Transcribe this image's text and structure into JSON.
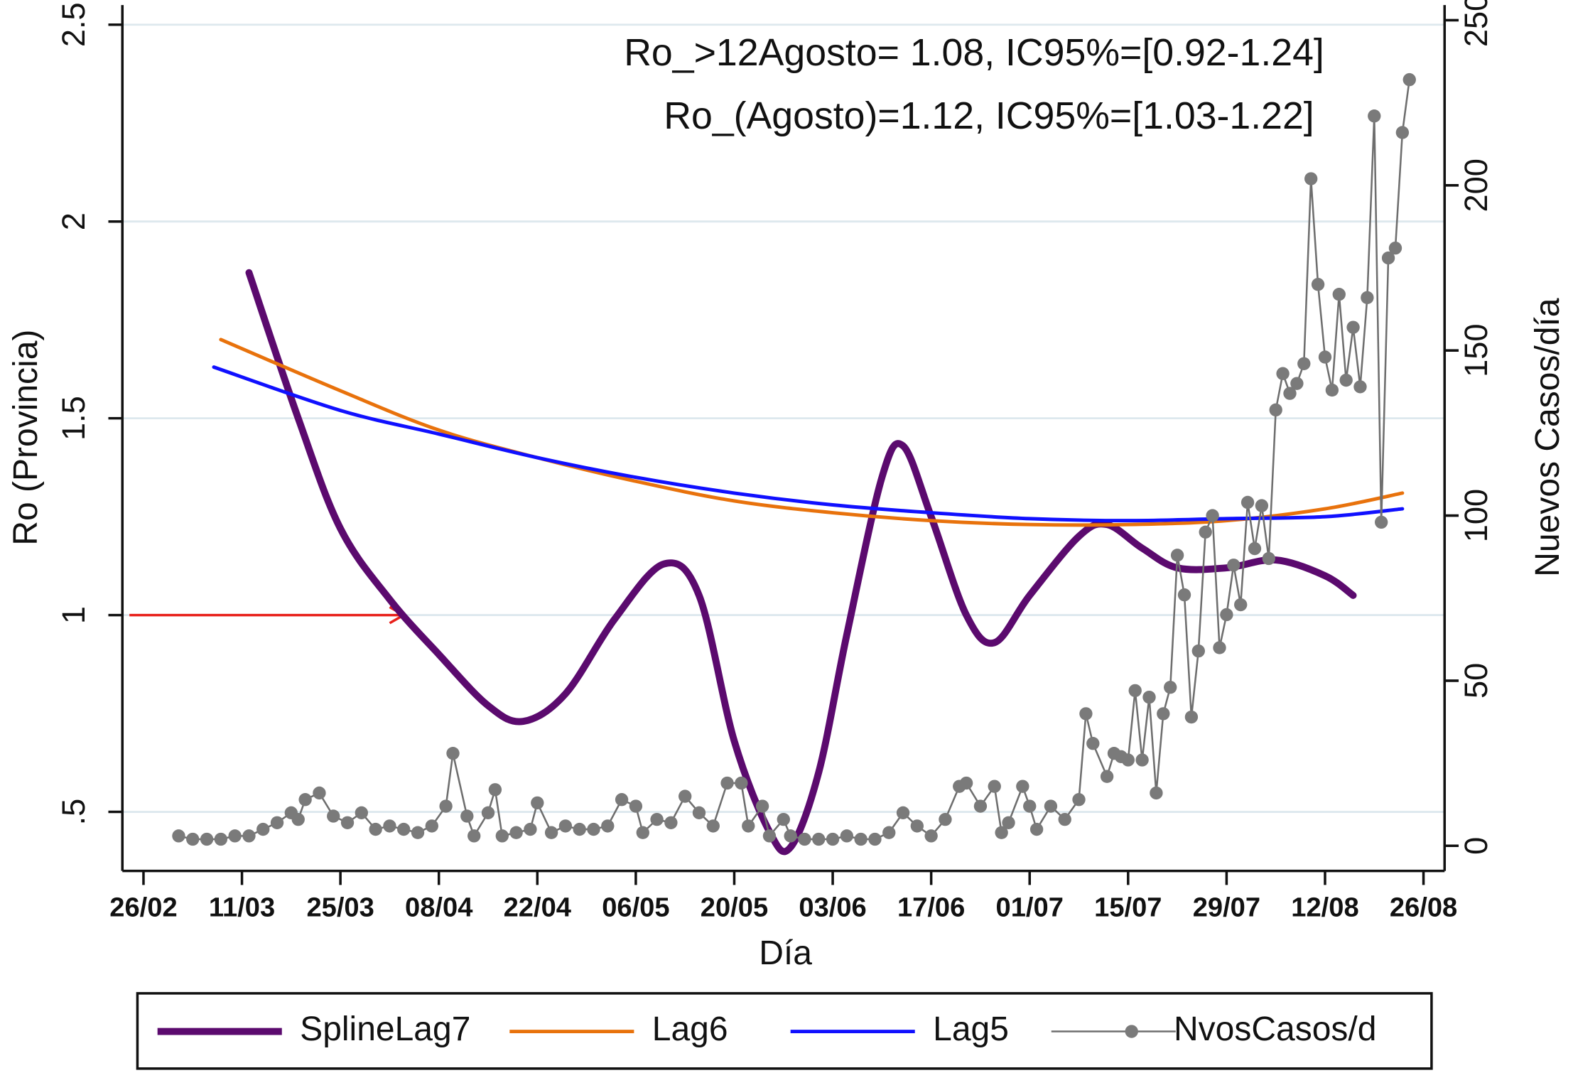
{
  "chart_data": {
    "type": "line",
    "annotations": [
      "Ro_>12Agosto= 1.08, IC95%=[0.92-1.24]",
      "Ro_(Agosto)=1.12, IC95%=[1.03-1.22]"
    ],
    "xlabel": "Día",
    "ylabel": "Ro (Provincia)",
    "y2label": "Nuevos Casos/día",
    "xlim": [
      "23/02",
      "29/08"
    ],
    "xticks": [
      "26/02",
      "11/03",
      "25/03",
      "08/04",
      "22/04",
      "06/05",
      "20/05",
      "03/06",
      "17/06",
      "01/07",
      "15/07",
      "29/07",
      "12/08",
      "26/08"
    ],
    "ylim": [
      0.35,
      2.55
    ],
    "yticks": [
      {
        "value": 0.5,
        "label": ".5"
      },
      1,
      1.5,
      2,
      2.5
    ],
    "y2lim": [
      -7.6,
      254.6
    ],
    "y2ticks": [
      0,
      50,
      100,
      150,
      200,
      250
    ],
    "grid": true,
    "legend": "bottom",
    "arrow": {
      "y": 1,
      "x": [
        "24/02",
        "03/04"
      ],
      "color": "#e8201a"
    },
    "series": [
      {
        "name": "SplineLag7",
        "color": "#5b0a6e",
        "width": 7,
        "smooth": true,
        "x": [
          "12/03",
          "19/03",
          "25/03",
          "01/04",
          "08/04",
          "15/04",
          "20/04",
          "26/04",
          "03/05",
          "10/05",
          "15/05",
          "20/05",
          "25/05",
          "28/05",
          "01/06",
          "05/06",
          "10/06",
          "13/06",
          "17/06",
          "22/06",
          "26/06",
          "01/07",
          "08/07",
          "12/07",
          "17/07",
          "22/07",
          "29/07",
          "05/08",
          "12/08",
          "16/08"
        ],
        "values": [
          1.87,
          1.5,
          1.22,
          1.04,
          0.9,
          0.77,
          0.73,
          0.8,
          0.99,
          1.13,
          1.05,
          0.68,
          0.45,
          0.41,
          0.6,
          0.95,
          1.35,
          1.43,
          1.25,
          1.0,
          0.93,
          1.05,
          1.2,
          1.23,
          1.17,
          1.12,
          1.12,
          1.14,
          1.1,
          1.05
        ]
      },
      {
        "name": "Lag6",
        "color": "#e8720c",
        "width": 3.5,
        "smooth": true,
        "x": [
          "08/03",
          "25/03",
          "08/04",
          "22/04",
          "06/05",
          "20/05",
          "03/06",
          "17/06",
          "01/07",
          "15/07",
          "29/07",
          "12/08",
          "23/08"
        ],
        "values": [
          1.7,
          1.57,
          1.47,
          1.4,
          1.34,
          1.29,
          1.26,
          1.24,
          1.23,
          1.23,
          1.24,
          1.27,
          1.31
        ]
      },
      {
        "name": "Lag5",
        "color": "#1010ff",
        "width": 3.5,
        "smooth": true,
        "x": [
          "07/03",
          "25/03",
          "08/04",
          "22/04",
          "06/05",
          "20/05",
          "03/06",
          "17/06",
          "01/07",
          "15/07",
          "29/07",
          "12/08",
          "23/08"
        ],
        "values": [
          1.63,
          1.52,
          1.46,
          1.4,
          1.35,
          1.31,
          1.28,
          1.26,
          1.245,
          1.24,
          1.245,
          1.25,
          1.27
        ]
      },
      {
        "name": "NvosCasos/d",
        "color": "#6e6e6e",
        "width": 1.8,
        "axis": "y2",
        "markers": true,
        "x": [
          "02/03",
          "04/03",
          "06/03",
          "08/03",
          "10/03",
          "12/03",
          "14/03",
          "16/03",
          "18/03",
          "19/03",
          "20/03",
          "22/03",
          "24/03",
          "26/03",
          "28/03",
          "30/03",
          "01/04",
          "03/04",
          "05/04",
          "07/04",
          "09/04",
          "10/04",
          "12/04",
          "13/04",
          "15/04",
          "16/04",
          "17/04",
          "19/04",
          "21/04",
          "22/04",
          "24/04",
          "26/04",
          "28/04",
          "30/04",
          "02/05",
          "04/05",
          "06/05",
          "07/05",
          "09/05",
          "11/05",
          "13/05",
          "15/05",
          "17/05",
          "19/05",
          "21/05",
          "22/05",
          "24/05",
          "25/05",
          "27/05",
          "28/05",
          "30/05",
          "01/06",
          "03/06",
          "05/06",
          "07/06",
          "09/06",
          "11/06",
          "13/06",
          "15/06",
          "17/06",
          "19/06",
          "21/06",
          "22/06",
          "24/06",
          "26/06",
          "27/06",
          "28/06",
          "30/06",
          "01/07",
          "02/07",
          "04/07",
          "06/07",
          "08/07",
          "09/07",
          "10/07",
          "12/07",
          "13/07",
          "14/07",
          "15/07",
          "16/07",
          "17/07",
          "18/07",
          "19/07",
          "20/07",
          "21/07",
          "22/07",
          "23/07",
          "24/07",
          "25/07",
          "26/07",
          "27/07",
          "28/07",
          "29/07",
          "30/07",
          "31/07",
          "01/08",
          "02/08",
          "03/08",
          "04/08",
          "05/08",
          "06/08",
          "07/08",
          "08/08",
          "09/08",
          "10/08",
          "11/08",
          "12/08",
          "13/08",
          "14/08",
          "15/08",
          "16/08",
          "17/08",
          "18/08",
          "19/08",
          "20/08",
          "21/08",
          "22/08",
          "23/08",
          "24/08"
        ],
        "values": [
          3,
          2,
          2,
          2,
          3,
          3,
          5,
          7,
          10,
          8,
          14,
          16,
          9,
          7,
          10,
          5,
          6,
          5,
          4,
          6,
          12,
          28,
          9,
          3,
          10,
          17,
          3,
          4,
          5,
          13,
          4,
          6,
          5,
          5,
          6,
          14,
          12,
          4,
          8,
          7,
          15,
          10,
          6,
          19,
          19,
          6,
          12,
          3,
          8,
          3,
          2,
          2,
          2,
          3,
          2,
          2,
          4,
          10,
          6,
          3,
          8,
          18,
          19,
          12,
          18,
          4,
          7,
          18,
          12,
          5,
          12,
          8,
          14,
          40,
          31,
          21,
          28,
          27,
          26,
          47,
          26,
          45,
          16,
          40,
          48,
          88,
          76,
          39,
          59,
          95,
          100,
          60,
          70,
          85,
          73,
          104,
          90,
          103,
          87,
          132,
          143,
          137,
          140,
          146,
          202,
          170,
          148,
          138,
          167,
          141,
          157,
          139,
          166,
          221,
          98,
          178,
          181,
          216,
          232
        ]
      }
    ]
  }
}
